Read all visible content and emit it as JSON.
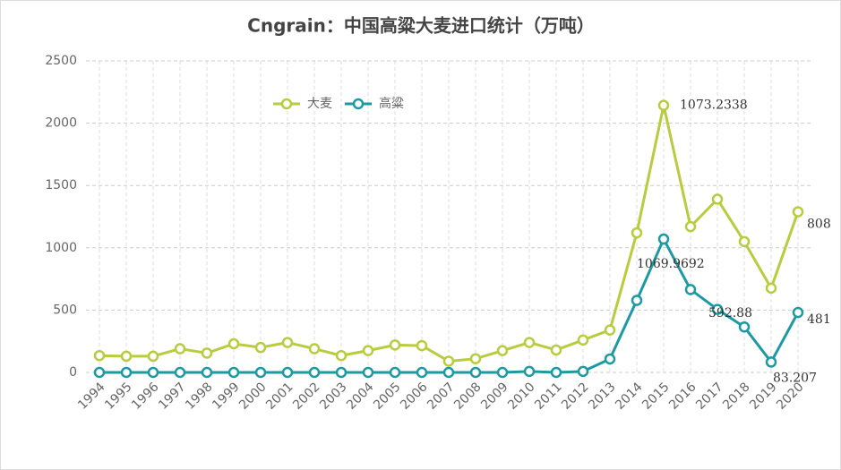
{
  "chart_data": {
    "type": "line",
    "stacked": true,
    "title": "Cngrain：中国高粱大麦进口统计（万吨）",
    "categories": [
      "1994",
      "1995",
      "1996",
      "1997",
      "1998",
      "1999",
      "2000",
      "2001",
      "2002",
      "2003",
      "2004",
      "2005",
      "2006",
      "2007",
      "2008",
      "2009",
      "2010",
      "2011",
      "2012",
      "2013",
      "2014",
      "2015",
      "2016",
      "2017",
      "2018",
      "2019",
      "2020"
    ],
    "series": [
      {
        "name": "高粱",
        "color": "#1c9aa2",
        "values": [
          0,
          0,
          0,
          0,
          0,
          0,
          0,
          0,
          0,
          0,
          0,
          0,
          0,
          0,
          0,
          0,
          8,
          0,
          8,
          108,
          578,
          1069.9692,
          665,
          506,
          365,
          83.207,
          481
        ],
        "value_labels": [
          null,
          null,
          null,
          null,
          null,
          null,
          null,
          null,
          null,
          null,
          null,
          null,
          null,
          null,
          null,
          null,
          null,
          null,
          null,
          null,
          null,
          "1069.9692",
          null,
          null,
          null,
          "83.207",
          "481"
        ]
      },
      {
        "name": "大麦",
        "color": "#b8cc3e",
        "values": [
          135,
          130,
          130,
          190,
          155,
          230,
          200,
          240,
          190,
          135,
          175,
          220,
          215,
          90,
          110,
          175,
          232,
          180,
          252,
          232,
          542,
          1073.2338,
          505,
          884,
          685,
          592.88,
          808
        ],
        "value_labels": [
          null,
          null,
          null,
          null,
          null,
          null,
          null,
          null,
          null,
          null,
          null,
          null,
          null,
          null,
          null,
          null,
          null,
          null,
          null,
          null,
          null,
          "1073.2338",
          null,
          null,
          null,
          "592.88",
          "808"
        ]
      }
    ],
    "ylim": [
      0,
      2500
    ],
    "yticks": [
      0,
      500,
      1000,
      1500,
      2000,
      2500
    ],
    "grid": true
  }
}
